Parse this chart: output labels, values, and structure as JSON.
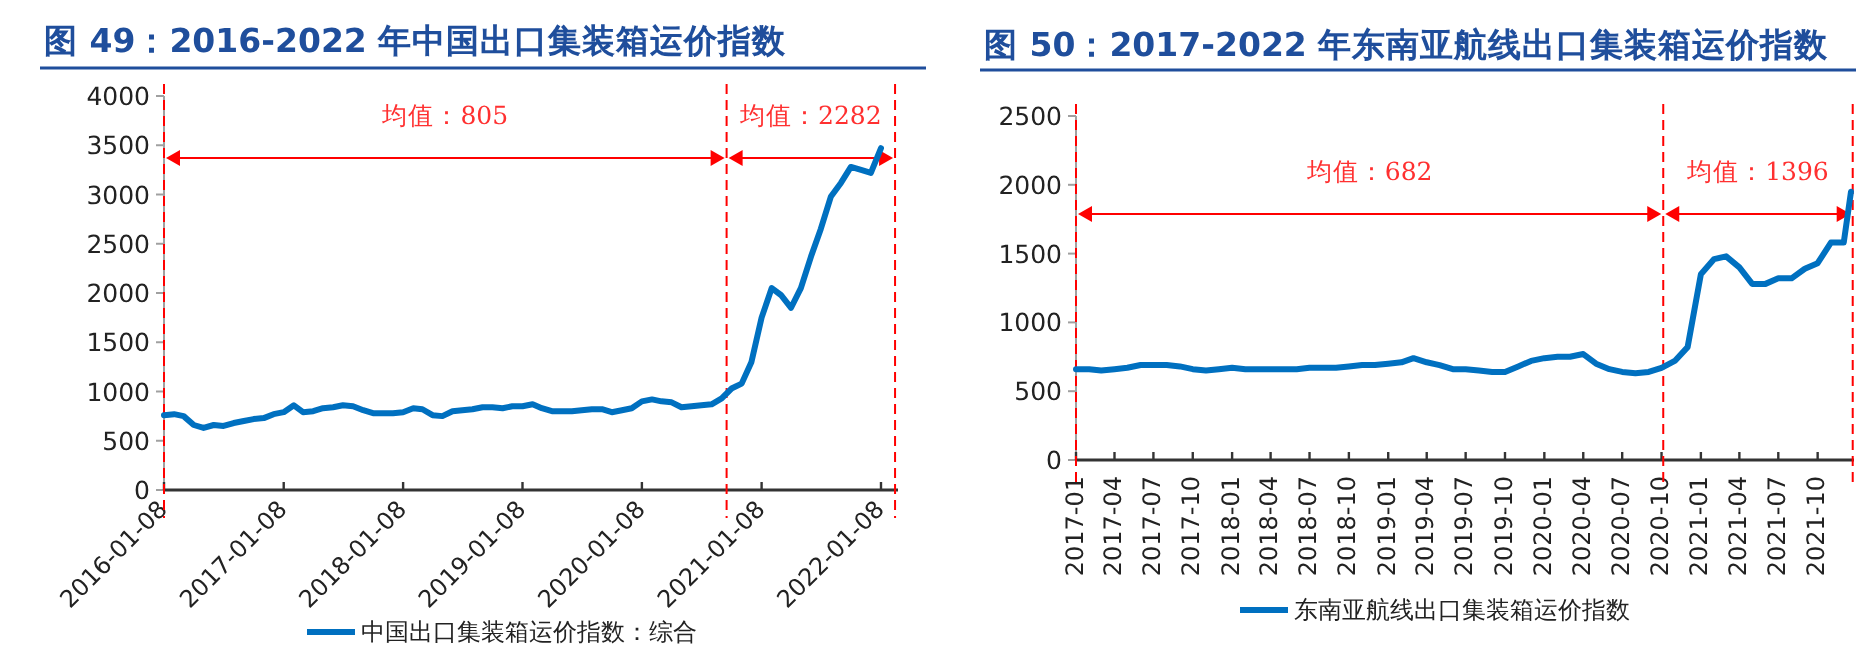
{
  "chart_data": [
    {
      "type": "line",
      "title": "图 49：2016-2022 年中国出口集装箱运价指数",
      "legend": "bottom",
      "xlim": [
        "2016-01-08",
        "2022-03-01"
      ],
      "ylim": [
        0,
        4000
      ],
      "xticks": [
        "2016-01-08",
        "2017-01-08",
        "2018-01-08",
        "2019-01-08",
        "2020-01-08",
        "2021-01-08",
        "2022-01-08"
      ],
      "yticks": [
        0,
        500,
        1000,
        1500,
        2000,
        2500,
        3000,
        3500,
        4000
      ],
      "ref_lines": [
        {
          "axis": "x",
          "value": "2016-01-08",
          "color": "#ff0000",
          "line_style": "dashed"
        },
        {
          "axis": "x",
          "value": "2020-09-23",
          "color": "#ff0000",
          "line_style": "dashed"
        },
        {
          "axis": "x",
          "value": "2022-02-20",
          "color": "#ff0000",
          "line_style": "dashed"
        }
      ],
      "annotations": [
        "均值：805",
        "均值：2282"
      ],
      "series": [
        {
          "name": "中国出口集装箱运价指数：综合",
          "color": "#0070c0",
          "x": [
            "2016-01-08",
            "2016-02-08",
            "2016-03-08",
            "2016-04-08",
            "2016-05-08",
            "2016-06-08",
            "2016-07-08",
            "2016-08-08",
            "2016-09-08",
            "2016-10-08",
            "2016-11-08",
            "2016-12-08",
            "2017-01-08",
            "2017-02-08",
            "2017-03-08",
            "2017-04-08",
            "2017-05-08",
            "2017-06-08",
            "2017-07-08",
            "2017-08-08",
            "2017-09-08",
            "2017-10-08",
            "2017-11-08",
            "2017-12-08",
            "2018-01-08",
            "2018-02-08",
            "2018-03-08",
            "2018-04-08",
            "2018-05-08",
            "2018-06-08",
            "2018-07-08",
            "2018-08-08",
            "2018-09-08",
            "2018-10-08",
            "2018-11-08",
            "2018-12-08",
            "2019-01-08",
            "2019-02-08",
            "2019-03-08",
            "2019-04-08",
            "2019-05-08",
            "2019-06-08",
            "2019-07-08",
            "2019-08-08",
            "2019-09-08",
            "2019-10-08",
            "2019-11-08",
            "2019-12-08",
            "2020-01-08",
            "2020-02-08",
            "2020-03-08",
            "2020-04-08",
            "2020-05-08",
            "2020-06-08",
            "2020-07-08",
            "2020-08-08",
            "2020-09-08",
            "2020-10-08",
            "2020-11-08",
            "2020-12-08",
            "2021-01-08",
            "2021-02-08",
            "2021-03-08",
            "2021-04-08",
            "2021-05-08",
            "2021-06-08",
            "2021-07-08",
            "2021-08-08",
            "2021-09-08",
            "2021-10-08",
            "2021-11-08",
            "2021-12-08",
            "2022-01-08"
          ],
          "values": [
            760,
            770,
            750,
            660,
            630,
            660,
            650,
            680,
            700,
            720,
            730,
            770,
            790,
            860,
            790,
            800,
            830,
            840,
            860,
            850,
            810,
            780,
            780,
            780,
            790,
            830,
            820,
            760,
            750,
            800,
            810,
            820,
            840,
            840,
            830,
            850,
            850,
            870,
            830,
            800,
            800,
            800,
            810,
            820,
            820,
            790,
            810,
            830,
            900,
            920,
            900,
            890,
            840,
            850,
            860,
            870,
            930,
            1030,
            1080,
            1300,
            1750,
            2050,
            1980,
            1850,
            2050,
            2370,
            2650,
            2980,
            3120,
            3280,
            3250,
            3220,
            3470
          ]
        }
      ]
    },
    {
      "type": "line",
      "title": "图 50：2017-2022 年东南亚航线出口集装箱运价指数",
      "legend": "bottom",
      "xlim": [
        "2017-01",
        "2021-12-25"
      ],
      "ylim": [
        0,
        2500
      ],
      "xticks": [
        "2017-01",
        "2017-04",
        "2017-07",
        "2017-10",
        "2018-01",
        "2018-04",
        "2018-07",
        "2018-10",
        "2019-01",
        "2019-04",
        "2019-07",
        "2019-10",
        "2020-01",
        "2020-04",
        "2020-07",
        "2020-10",
        "2021-01",
        "2021-04",
        "2021-07",
        "2021-10"
      ],
      "yticks": [
        0,
        500,
        1000,
        1500,
        2000,
        2500
      ],
      "ref_lines": [
        {
          "axis": "x",
          "value": "2017-01",
          "color": "#ff0000",
          "line_style": "dashed"
        },
        {
          "axis": "x",
          "value": "2020-10-05",
          "color": "#ff0000",
          "line_style": "dashed"
        },
        {
          "axis": "x",
          "value": "2021-12-22",
          "color": "#ff0000",
          "line_style": "dashed"
        }
      ],
      "annotations": [
        "均值：682",
        "均值：1396"
      ],
      "series": [
        {
          "name": "东南亚航线出口集装箱运价指数",
          "color": "#0070c0",
          "x": [
            "2017-01",
            "2017-02",
            "2017-03",
            "2017-04",
            "2017-05",
            "2017-06",
            "2017-07",
            "2017-08",
            "2017-09",
            "2017-10",
            "2017-11",
            "2017-12",
            "2018-01",
            "2018-02",
            "2018-03",
            "2018-04",
            "2018-05",
            "2018-06",
            "2018-07",
            "2018-08",
            "2018-09",
            "2018-10",
            "2018-11",
            "2018-12",
            "2019-01",
            "2019-02",
            "2019-03",
            "2019-04",
            "2019-05",
            "2019-06",
            "2019-07",
            "2019-08",
            "2019-09",
            "2019-10",
            "2019-11",
            "2019-12",
            "2020-01",
            "2020-02",
            "2020-03",
            "2020-04",
            "2020-05",
            "2020-06",
            "2020-07",
            "2020-08",
            "2020-09",
            "2020-10",
            "2020-11",
            "2020-12",
            "2021-01",
            "2021-02",
            "2021-03",
            "2021-04",
            "2021-05",
            "2021-06",
            "2021-07",
            "2021-08",
            "2021-09",
            "2021-10",
            "2021-11",
            "2021-12",
            "2021-12-18"
          ],
          "values": [
            660,
            660,
            650,
            660,
            670,
            690,
            690,
            690,
            680,
            660,
            650,
            660,
            670,
            660,
            660,
            660,
            660,
            660,
            670,
            670,
            670,
            680,
            690,
            690,
            700,
            710,
            740,
            710,
            690,
            660,
            660,
            650,
            640,
            640,
            680,
            720,
            740,
            750,
            750,
            770,
            700,
            660,
            640,
            630,
            640,
            670,
            720,
            820,
            1350,
            1460,
            1480,
            1400,
            1280,
            1280,
            1320,
            1320,
            1390,
            1430,
            1580,
            1580,
            1950
          ]
        }
      ]
    }
  ]
}
